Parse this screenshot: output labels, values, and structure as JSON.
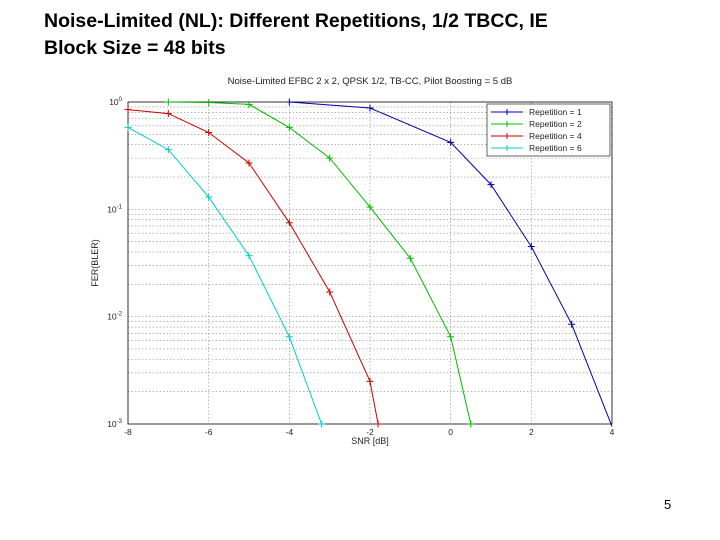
{
  "slide": {
    "title_line1": "Noise-Limited (NL): Different Repetitions, 1/2 TBCC, IE",
    "title_line2": "Block Size = 48 bits",
    "page_number": "5"
  },
  "chart_data": {
    "type": "line",
    "title": "Noise-Limited EFBC 2 x 2, QPSK 1/2, TB-CC, Pilot Boosting = 5 dB",
    "xlabel": "SNR [dB]",
    "ylabel": "FER(BLER)",
    "xlim": [
      -8,
      4
    ],
    "ylim": [
      0.001,
      1
    ],
    "yscale": "log",
    "xticks": [
      -8,
      -6,
      -4,
      -2,
      0,
      2,
      4
    ],
    "xtick_labels": [
      "-8",
      "-6",
      "-4",
      "-2",
      "0",
      "2",
      "4"
    ],
    "yticks": [
      1,
      0.1,
      0.01,
      0.001
    ],
    "ytick_labels": [
      "10^0",
      "10^-1",
      "10^-2",
      "10^-3"
    ],
    "grid": true,
    "legend_position": "top-right",
    "series": [
      {
        "name": "Repetition = 1",
        "color": "#0000aa",
        "marker": "+",
        "x": [
          -4,
          -2,
          0,
          1,
          2,
          3,
          4
        ],
        "y": [
          1.0,
          0.88,
          0.42,
          0.17,
          0.045,
          0.0085,
          0.00095
        ]
      },
      {
        "name": "Repetition = 2",
        "color": "#00bb00",
        "marker": "+",
        "x": [
          -7,
          -6,
          -5,
          -4,
          -3,
          -2,
          -1,
          0,
          0.5
        ],
        "y": [
          1.0,
          0.99,
          0.95,
          0.58,
          0.3,
          0.105,
          0.035,
          0.0065,
          0.001
        ]
      },
      {
        "name": "Repetition = 4",
        "color": "#cc0000",
        "marker": "+",
        "x": [
          -8,
          -7,
          -6,
          -5,
          -4,
          -3,
          -2,
          -1.8
        ],
        "y": [
          0.85,
          0.78,
          0.52,
          0.27,
          0.075,
          0.017,
          0.0025,
          0.001
        ]
      },
      {
        "name": "Repetition = 6",
        "color": "#00cccc",
        "marker": "+",
        "x": [
          -8,
          -7,
          -6,
          -5,
          -4,
          -3.2
        ],
        "y": [
          0.58,
          0.36,
          0.13,
          0.037,
          0.0065,
          0.001
        ]
      }
    ]
  }
}
